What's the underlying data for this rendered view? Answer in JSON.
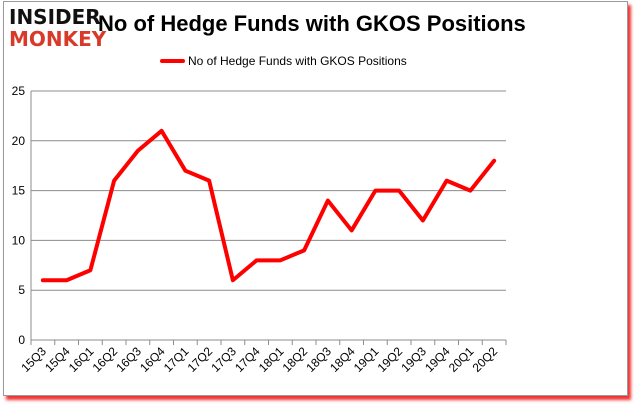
{
  "logo": {
    "top": "INSIDER",
    "bottom": "MONKEY"
  },
  "chart_data": {
    "type": "line",
    "title": "No of Hedge Funds with GKOS Positions",
    "xlabel": "",
    "ylabel": "",
    "categories": [
      "15Q3",
      "15Q4",
      "16Q1",
      "16Q2",
      "16Q3",
      "16Q4",
      "17Q1",
      "17Q2",
      "17Q3",
      "17Q4",
      "18Q1",
      "18Q2",
      "18Q3",
      "18Q4",
      "19Q1",
      "19Q2",
      "19Q3",
      "19Q4",
      "20Q1",
      "20Q2"
    ],
    "series": [
      {
        "name": "No of Hedge Funds with GKOS Positions",
        "color": "#ff0000",
        "values": [
          6,
          6,
          7,
          16,
          19,
          21,
          17,
          16,
          6,
          8,
          8,
          9,
          14,
          11,
          15,
          15,
          12,
          16,
          15,
          18
        ]
      }
    ],
    "ylim": [
      0,
      25
    ],
    "yticks": [
      0,
      5,
      10,
      15,
      20,
      25
    ],
    "grid": true,
    "legend_position": "top"
  }
}
